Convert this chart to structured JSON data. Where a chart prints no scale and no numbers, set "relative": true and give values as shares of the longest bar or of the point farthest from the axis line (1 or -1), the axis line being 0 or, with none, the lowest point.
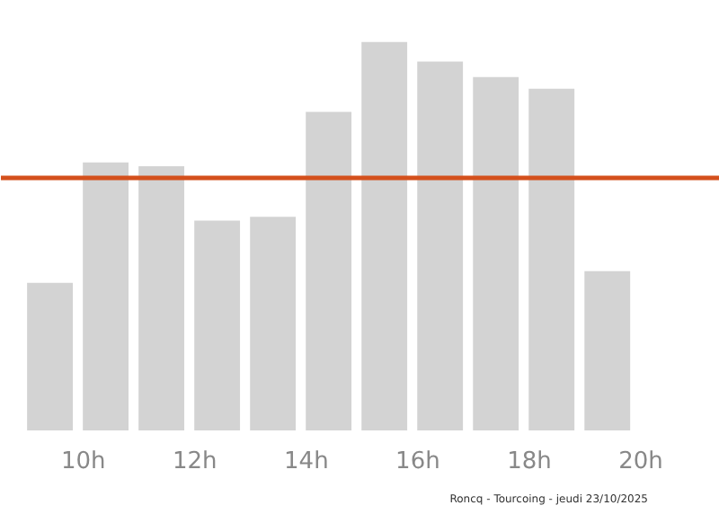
{
  "chart_data": {
    "type": "bar",
    "relative": true,
    "x": [
      9.4,
      10.4,
      11.4,
      12.4,
      13.4,
      14.4,
      15.4,
      16.4,
      17.4,
      18.4,
      19.4
    ],
    "values": [
      0.38,
      0.69,
      0.68,
      0.54,
      0.55,
      0.82,
      1,
      0.95,
      0.91,
      0.88,
      0.41
    ],
    "color": "#d3d3d3",
    "xlim": [
      8.52,
      21.42
    ],
    "xticks": [
      {
        "value": 10,
        "label": "10h"
      },
      {
        "value": 12,
        "label": "12h"
      },
      {
        "value": 14,
        "label": "14h"
      },
      {
        "value": 16,
        "label": "16h"
      },
      {
        "value": 18,
        "label": "18h"
      },
      {
        "value": 20,
        "label": "20h"
      }
    ],
    "ref_lines": [
      {
        "axis": "y",
        "value": 0.65,
        "label": null,
        "color": "#d4501c"
      }
    ],
    "annotations": [
      "Roncq - Tourcoing - jeudi 23/10/2025"
    ],
    "grid": false
  }
}
